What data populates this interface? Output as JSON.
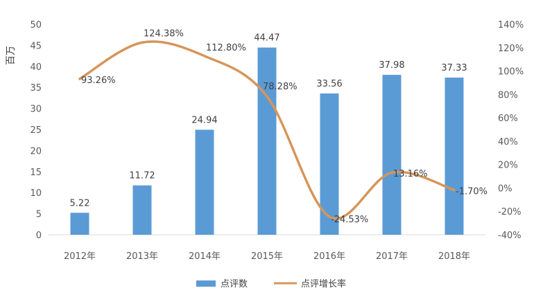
{
  "chart_data": {
    "type": "bar",
    "categories": [
      "2012年",
      "2013年",
      "2014年",
      "2015年",
      "2016年",
      "2017年",
      "2018年"
    ],
    "ylabel": "百万",
    "ylim": [
      0,
      50
    ],
    "y_ticks": [
      "0",
      "5",
      "10",
      "15",
      "20",
      "25",
      "30",
      "35",
      "40",
      "45",
      "50"
    ],
    "y2lim": [
      -40,
      140
    ],
    "y2_ticks": [
      "-40%",
      "-20%",
      "0%",
      "20%",
      "40%",
      "60%",
      "80%",
      "100%",
      "120%",
      "140%"
    ],
    "series": [
      {
        "name": "点评数",
        "type": "bar",
        "axis": "left",
        "color": "#5b9bd5",
        "values": [
          5.22,
          11.72,
          24.94,
          44.47,
          33.56,
          37.98,
          37.33
        ],
        "labels": [
          "5.22",
          "11.72",
          "24.94",
          "44.47",
          "33.56",
          "37.98",
          "37.33"
        ]
      },
      {
        "name": "点评增长率",
        "type": "line",
        "axis": "right",
        "color": "#d6955a",
        "values": [
          93.26,
          124.38,
          112.8,
          78.28,
          -24.53,
          13.16,
          -1.7
        ],
        "labels": [
          "93.26%",
          "124.38%",
          "112.80%",
          "78.28%",
          "-24.53%",
          "13.16%",
          "-1.70%"
        ]
      }
    ],
    "legend_position": "bottom",
    "grid": false
  }
}
